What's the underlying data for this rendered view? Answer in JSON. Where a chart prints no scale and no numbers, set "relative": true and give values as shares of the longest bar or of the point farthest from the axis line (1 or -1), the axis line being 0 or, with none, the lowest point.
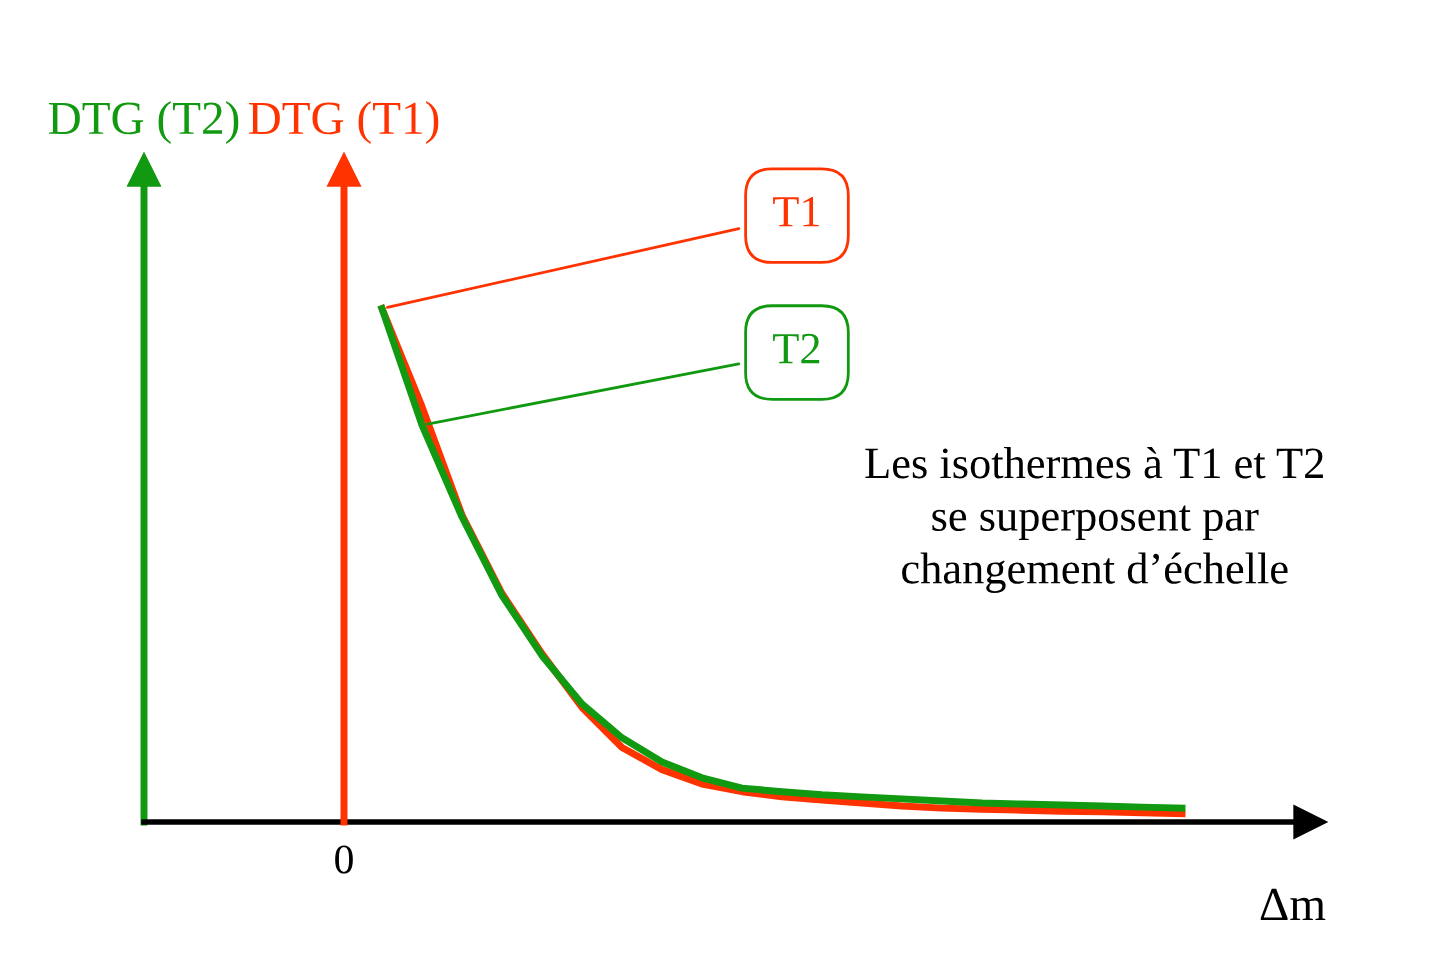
{
  "chart_data": {
    "type": "line",
    "relative": true,
    "xlabel": "Δm",
    "ylabel": "DTG (T2)",
    "y2label": "DTG (T1)",
    "legend": false,
    "marker": "none",
    "line_style": "solid",
    "annotations": [
      "0",
      "Les isothermes à T1 et T2\nse superposent par\nchangement d’échelle"
    ],
    "categories": [
      null,
      null,
      null,
      null,
      null,
      null,
      null,
      null,
      null,
      null,
      null,
      null,
      null,
      null,
      null,
      null,
      null,
      null,
      null,
      null,
      null
    ],
    "series": [
      {
        "name": "T1",
        "color": "#ff3300",
        "values": [
          1,
          0.809,
          0.598,
          0.445,
          0.328,
          0.223,
          0.145,
          0.102,
          0.074,
          0.059,
          0.049,
          0.043,
          0.037,
          0.031,
          0.027,
          0.025,
          0.023,
          0.021,
          0.02,
          0.018,
          0.016
        ]
      },
      {
        "name": "T2",
        "color": "#119911",
        "values": [
          1,
          0.773,
          0.594,
          0.441,
          0.324,
          0.23,
          0.164,
          0.117,
          0.086,
          0.066,
          0.059,
          0.053,
          0.049,
          0.045,
          0.041,
          0.037,
          0.035,
          0.033,
          0.031,
          0.029,
          0.027
        ]
      }
    ]
  }
}
